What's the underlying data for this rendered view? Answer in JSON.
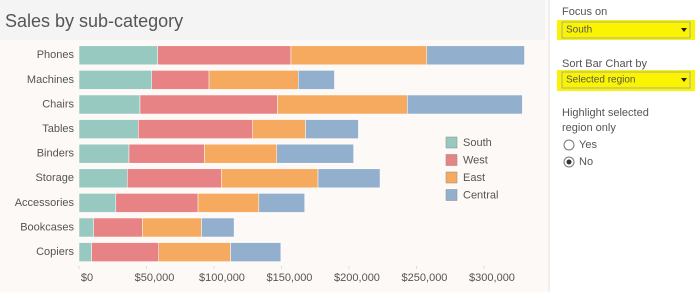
{
  "chart_data": {
    "type": "bar",
    "orientation": "horizontal",
    "stacked": true,
    "title": "Sales by sub-category",
    "categories": [
      "Phones",
      "Machines",
      "Chairs",
      "Tables",
      "Binders",
      "Storage",
      "Accessories",
      "Bookcases",
      "Copiers"
    ],
    "series": [
      {
        "name": "South",
        "color": "#98c9c0",
        "values": [
          58304,
          53891,
          45176,
          43916,
          37030,
          35768,
          27277,
          10899,
          9300
        ]
      },
      {
        "name": "West",
        "color": "#e88385",
        "values": [
          98684,
          42444,
          101781,
          84755,
          55961,
          69678,
          60907,
          36004,
          49750
        ]
      },
      {
        "name": "East",
        "color": "#f6aa5f",
        "values": [
          100615,
          66106,
          96248,
          39140,
          53498,
          71613,
          45033,
          43819,
          53219
        ]
      },
      {
        "name": "Central",
        "color": "#92b0ce",
        "values": [
          72403,
          26797,
          85231,
          39154,
          56923,
          45930,
          33956,
          24157,
          37259
        ]
      }
    ],
    "xlim": [
      0,
      335000
    ],
    "xticks": [
      {
        "value": 0,
        "label": "$0"
      },
      {
        "value": 50000,
        "label": "$50,000"
      },
      {
        "value": 100000,
        "label": "$100,000"
      },
      {
        "value": 150000,
        "label": "$150,000"
      },
      {
        "value": 200000,
        "label": "$200,000"
      },
      {
        "value": 250000,
        "label": "$250,000"
      },
      {
        "value": 300000,
        "label": "$300,000"
      }
    ],
    "grid": false,
    "legend": "right"
  },
  "controls": {
    "focus": {
      "label": "Focus on",
      "value": "South"
    },
    "sort": {
      "label": "Sort Bar Chart by",
      "value": "Selected region"
    },
    "highlight": {
      "label_lines": [
        "Highlight selected",
        "region only"
      ],
      "options": [
        "Yes",
        "No"
      ],
      "selected": "No"
    }
  }
}
